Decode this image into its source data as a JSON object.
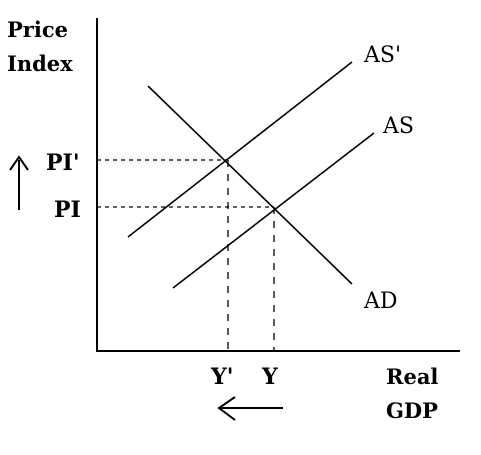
{
  "axes": {
    "y_title_line1": "Price",
    "y_title_line2": "Index",
    "x_title_line1": "Real",
    "x_title_line2": "GDP"
  },
  "curves": {
    "as_new": "AS'",
    "as": "AS",
    "ad": "AD"
  },
  "price_levels": {
    "new": "PI'",
    "original": "PI"
  },
  "output_levels": {
    "new": "Y'",
    "original": "Y"
  },
  "indicators": {
    "price": "up-arrow-icon",
    "output": "left-arrow-icon"
  },
  "colors": {
    "line": "#000000",
    "background": "#ffffff"
  }
}
